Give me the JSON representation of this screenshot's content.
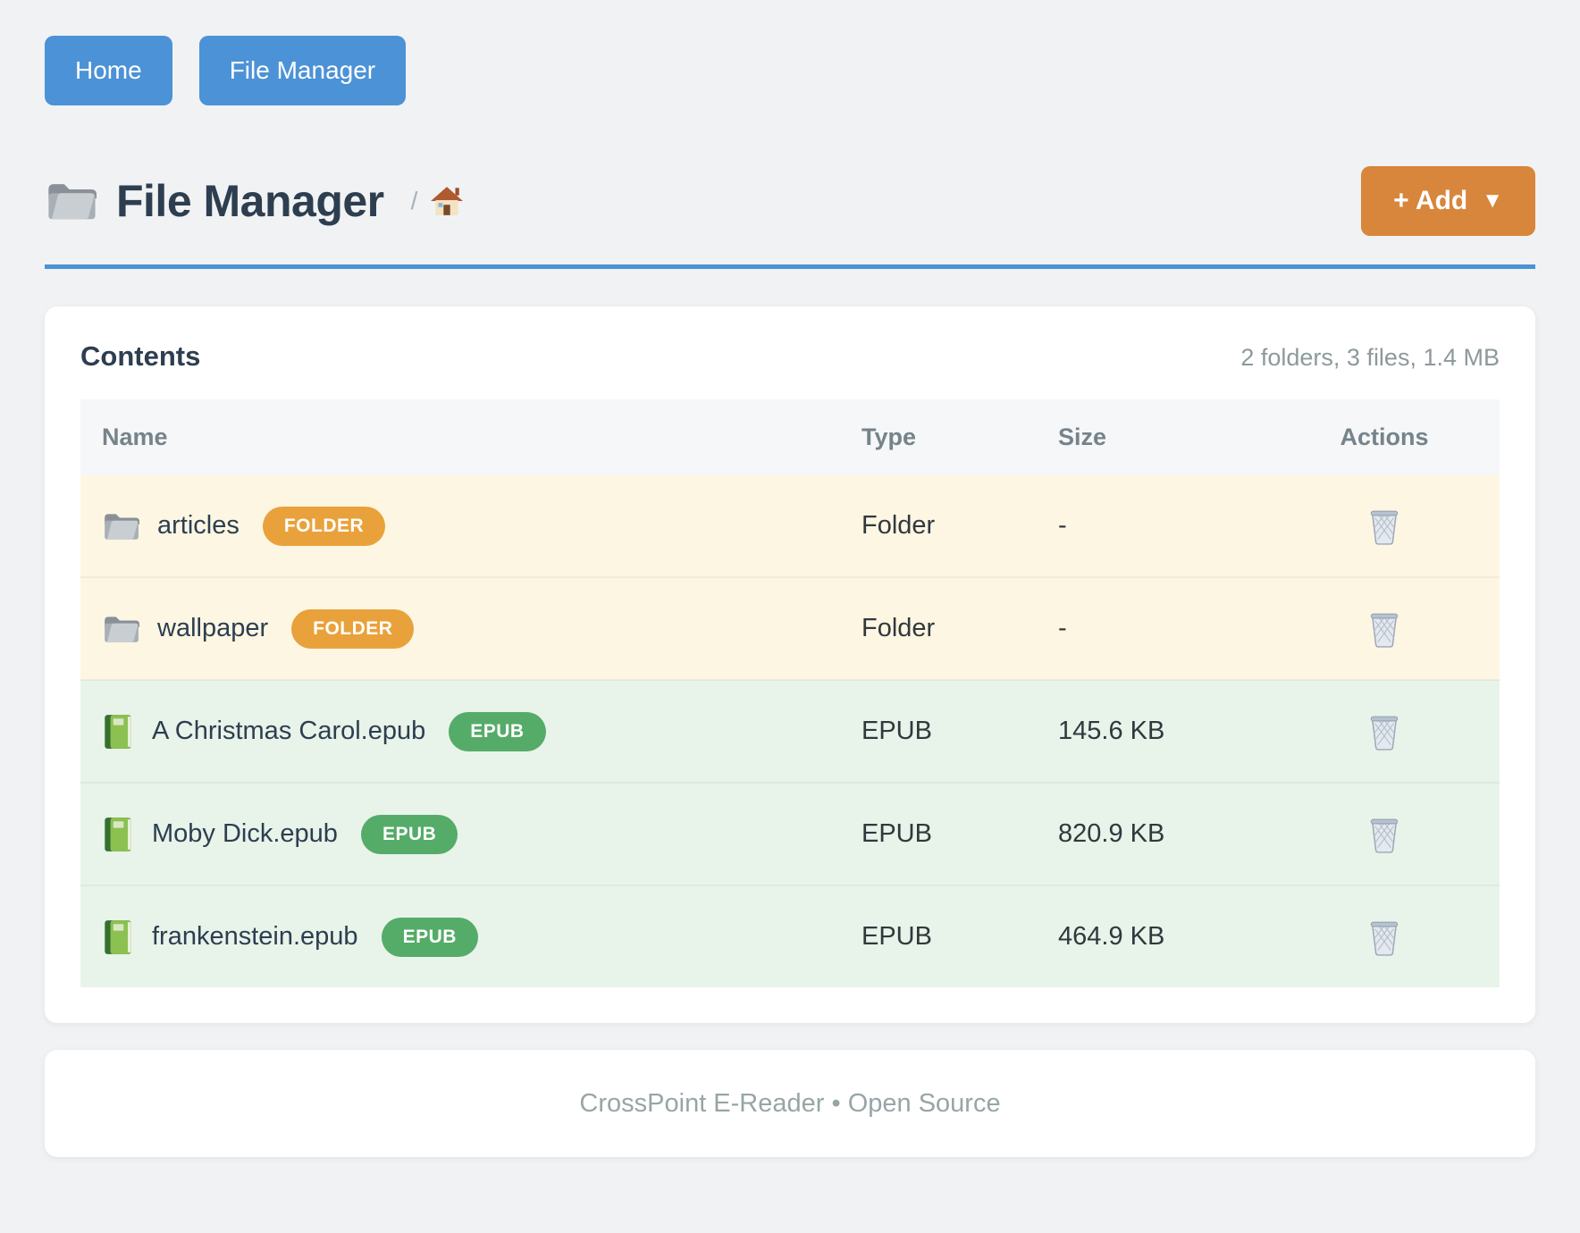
{
  "nav": {
    "items": [
      {
        "label": "Home"
      },
      {
        "label": "File Manager"
      }
    ]
  },
  "header": {
    "title": "File Manager",
    "title_icon": "folder-icon",
    "breadcrumb_separator": "/",
    "breadcrumb_home_icon": "house-icon",
    "add_button": {
      "label": "+ Add",
      "caret": "▼"
    }
  },
  "content_card": {
    "title": "Contents",
    "summary": "2 folders, 3 files, 1.4 MB",
    "table": {
      "columns": [
        "Name",
        "Type",
        "Size",
        "Actions"
      ],
      "rows": [
        {
          "name": "articles",
          "kind": "folder",
          "icon": "folder-icon",
          "badge": "FOLDER",
          "type": "Folder",
          "size": "-",
          "action_icon": "trash-icon"
        },
        {
          "name": "wallpaper",
          "kind": "folder",
          "icon": "folder-icon",
          "badge": "FOLDER",
          "type": "Folder",
          "size": "-",
          "action_icon": "trash-icon"
        },
        {
          "name": "A Christmas Carol.epub",
          "kind": "epub",
          "icon": "book-icon",
          "badge": "EPUB",
          "type": "EPUB",
          "size": "145.6 KB",
          "action_icon": "trash-icon"
        },
        {
          "name": "Moby Dick.epub",
          "kind": "epub",
          "icon": "book-icon",
          "badge": "EPUB",
          "type": "EPUB",
          "size": "820.9 KB",
          "action_icon": "trash-icon"
        },
        {
          "name": "frankenstein.epub",
          "kind": "epub",
          "icon": "book-icon",
          "badge": "EPUB",
          "type": "EPUB",
          "size": "464.9 KB",
          "action_icon": "trash-icon"
        }
      ]
    }
  },
  "footer": {
    "text": "CrossPoint E-Reader • Open Source"
  },
  "colors": {
    "primary_blue": "#4c92d6",
    "accent_orange": "#d8863b",
    "folder_badge_orange": "#e9a23b",
    "epub_badge_green": "#55ab68",
    "folder_row_bg": "#fdf6e3",
    "epub_row_bg": "#e8f3e9",
    "page_bg": "#f1f2f3"
  }
}
